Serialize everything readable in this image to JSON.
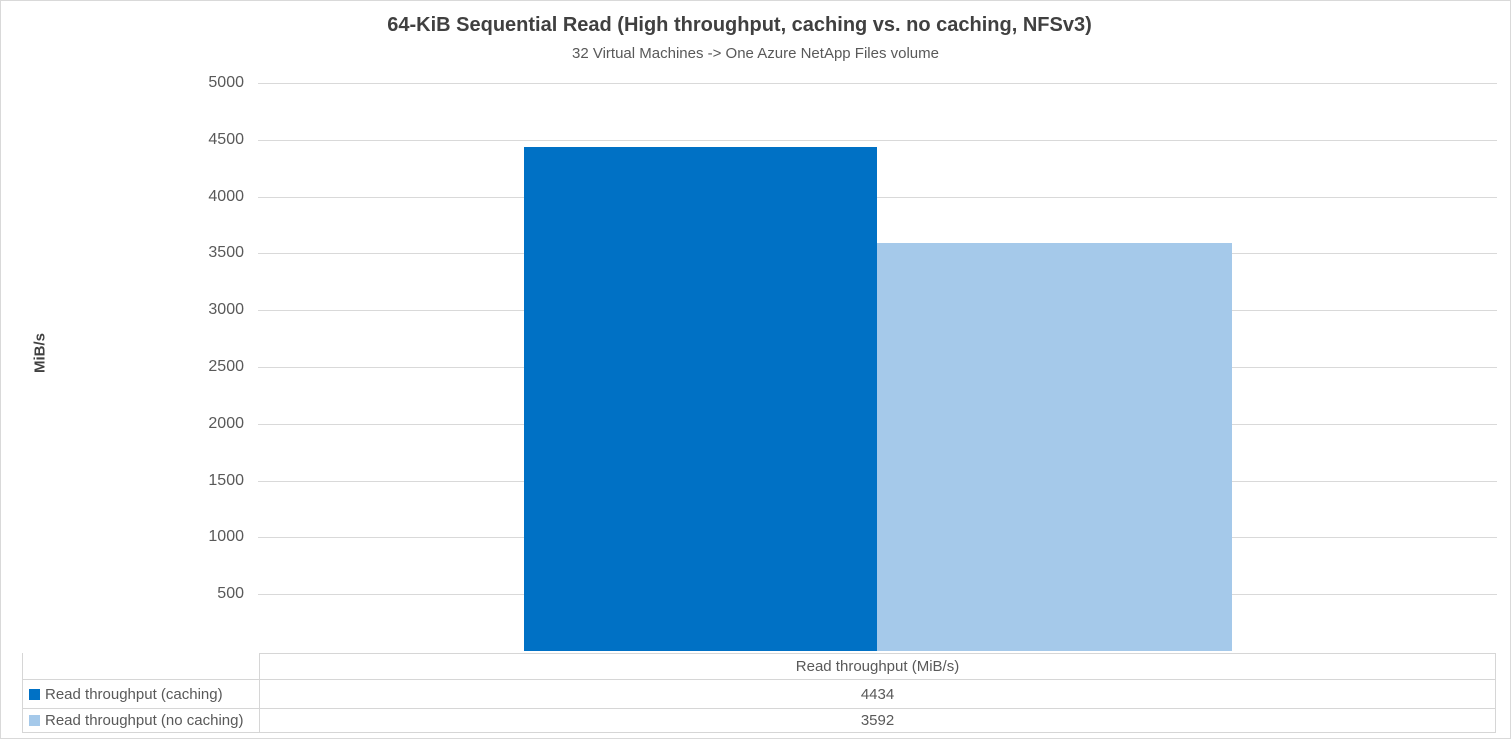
{
  "chart": {
    "title": "64-KiB Sequential Read (High throughput, caching vs. no caching, NFSv3)",
    "subtitle": "32 Virtual Machines -> One Azure NetApp Files volume",
    "y_axis_label": "MiB/s"
  },
  "chart_data": {
    "type": "bar",
    "title": "64-KiB Sequential Read (High throughput, caching vs. no caching, NFSv3)",
    "subtitle": "32 Virtual Machines -> One Azure NetApp Files volume",
    "xlabel": "",
    "ylabel": "MiB/s",
    "ylim": [
      0,
      5000
    ],
    "ytick_step": 500,
    "grid": true,
    "legend_position": "bottom-left-table",
    "categories": [
      "Read throughput (MiB/s)"
    ],
    "series": [
      {
        "name": "Read throughput (caching)",
        "values": [
          4434
        ],
        "color": "#0071C5"
      },
      {
        "name": "Read throughput (no caching)",
        "values": [
          3592
        ],
        "color": "#A5C9EA"
      }
    ],
    "colors": {
      "bar_caching": "#0071C5",
      "bar_no_caching": "#A5C9EA",
      "gridline": "#D9D9D9",
      "table_border": "#D6D6D6",
      "title_text": "#404040",
      "body_text": "#595959"
    }
  }
}
